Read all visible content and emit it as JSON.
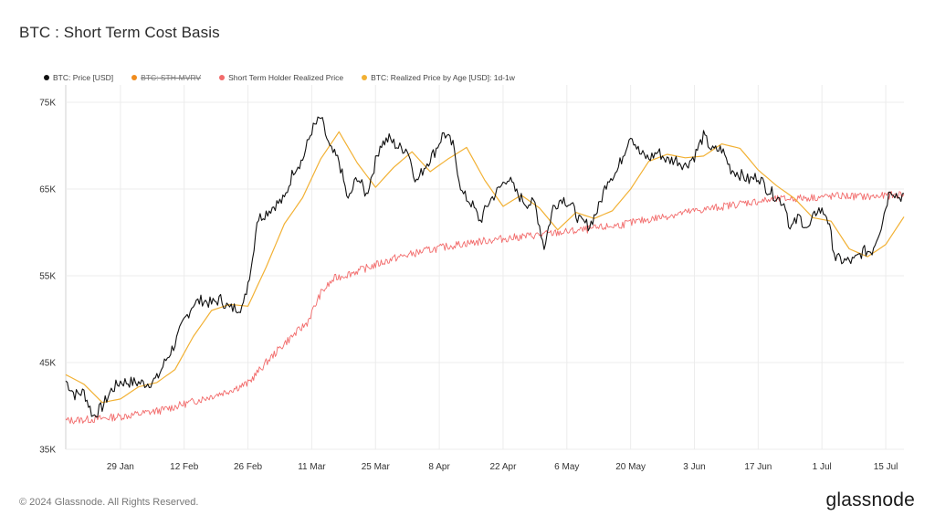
{
  "header": {
    "title": "BTC : Short Term Cost Basis"
  },
  "footer": {
    "copyright": "© 2024 Glassnode. All Rights Reserved.",
    "brand": "glassnode"
  },
  "legend": [
    {
      "label": "BTC: Price [USD]",
      "color": "#111111",
      "enabled": true
    },
    {
      "label": "BTC: STH-MVRV",
      "color": "#f08c1e",
      "enabled": false
    },
    {
      "label": "Short Term Holder Realized Price",
      "color": "#f26b6b",
      "enabled": true
    },
    {
      "label": "BTC: Realized Price by Age [USD]: 1d-1w",
      "color": "#f2b134",
      "enabled": true
    }
  ],
  "chart_data": {
    "type": "line",
    "title": "BTC : Short Term Cost Basis",
    "xlabel": "",
    "ylabel": "",
    "x_range": [
      "2024-01-17",
      "2024-07-19"
    ],
    "ylim": [
      35000,
      77000
    ],
    "y_ticks": [
      {
        "value": 35000,
        "label": "35K"
      },
      {
        "value": 45000,
        "label": "45K"
      },
      {
        "value": 55000,
        "label": "55K"
      },
      {
        "value": 65000,
        "label": "65K"
      },
      {
        "value": 75000,
        "label": "75K"
      }
    ],
    "x_ticks": [
      {
        "date": "2024-01-29",
        "label": "29 Jan"
      },
      {
        "date": "2024-02-12",
        "label": "12 Feb"
      },
      {
        "date": "2024-02-26",
        "label": "26 Feb"
      },
      {
        "date": "2024-03-11",
        "label": "11 Mar"
      },
      {
        "date": "2024-03-25",
        "label": "25 Mar"
      },
      {
        "date": "2024-04-08",
        "label": "8 Apr"
      },
      {
        "date": "2024-04-22",
        "label": "22 Apr"
      },
      {
        "date": "2024-05-06",
        "label": "6 May"
      },
      {
        "date": "2024-05-20",
        "label": "20 May"
      },
      {
        "date": "2024-06-03",
        "label": "3 Jun"
      },
      {
        "date": "2024-06-17",
        "label": "17 Jun"
      },
      {
        "date": "2024-07-01",
        "label": "1 Jul"
      },
      {
        "date": "2024-07-15",
        "label": "15 Jul"
      }
    ],
    "grid": true,
    "legend_position": "top-left",
    "series": [
      {
        "name": "BTC: Price [USD]",
        "color": "#111111",
        "points": [
          [
            "2024-01-17",
            42900
          ],
          [
            "2024-01-19",
            41300
          ],
          [
            "2024-01-21",
            41600
          ],
          [
            "2024-01-23",
            38800
          ],
          [
            "2024-01-25",
            39900
          ],
          [
            "2024-01-27",
            41800
          ],
          [
            "2024-01-29",
            42800
          ],
          [
            "2024-02-01",
            42700
          ],
          [
            "2024-02-04",
            42600
          ],
          [
            "2024-02-06",
            43100
          ],
          [
            "2024-02-08",
            45300
          ],
          [
            "2024-02-10",
            47200
          ],
          [
            "2024-02-12",
            49800
          ],
          [
            "2024-02-14",
            51800
          ],
          [
            "2024-02-16",
            52200
          ],
          [
            "2024-02-18",
            51800
          ],
          [
            "2024-02-20",
            52300
          ],
          [
            "2024-02-22",
            51200
          ],
          [
            "2024-02-25",
            51500
          ],
          [
            "2024-02-27",
            57000
          ],
          [
            "2024-02-28",
            61500
          ],
          [
            "2024-03-01",
            62300
          ],
          [
            "2024-03-03",
            63200
          ],
          [
            "2024-03-05",
            63800
          ],
          [
            "2024-03-07",
            67200
          ],
          [
            "2024-03-09",
            68400
          ],
          [
            "2024-03-11",
            71800
          ],
          [
            "2024-03-13",
            73200
          ],
          [
            "2024-03-15",
            69600
          ],
          [
            "2024-03-17",
            68200
          ],
          [
            "2024-03-19",
            63600
          ],
          [
            "2024-03-21",
            66500
          ],
          [
            "2024-03-23",
            64300
          ],
          [
            "2024-03-26",
            70100
          ],
          [
            "2024-03-28",
            70800
          ],
          [
            "2024-03-30",
            69800
          ],
          [
            "2024-04-01",
            69600
          ],
          [
            "2024-04-03",
            65800
          ],
          [
            "2024-04-05",
            67800
          ],
          [
            "2024-04-07",
            69300
          ],
          [
            "2024-04-09",
            71500
          ],
          [
            "2024-04-11",
            70000
          ],
          [
            "2024-04-13",
            64500
          ],
          [
            "2024-04-15",
            63400
          ],
          [
            "2024-04-17",
            61300
          ],
          [
            "2024-04-19",
            63600
          ],
          [
            "2024-04-21",
            64900
          ],
          [
            "2024-04-23",
            66400
          ],
          [
            "2024-04-25",
            64500
          ],
          [
            "2024-04-27",
            63400
          ],
          [
            "2024-04-29",
            63300
          ],
          [
            "2024-05-01",
            58300
          ],
          [
            "2024-05-03",
            62900
          ],
          [
            "2024-05-05",
            64000
          ],
          [
            "2024-05-07",
            63100
          ],
          [
            "2024-05-09",
            61200
          ],
          [
            "2024-05-11",
            60800
          ],
          [
            "2024-05-13",
            62900
          ],
          [
            "2024-05-15",
            66200
          ],
          [
            "2024-05-17",
            67000
          ],
          [
            "2024-05-20",
            71400
          ],
          [
            "2024-05-22",
            69100
          ],
          [
            "2024-05-24",
            68500
          ],
          [
            "2024-05-26",
            69300
          ],
          [
            "2024-05-28",
            68300
          ],
          [
            "2024-05-30",
            68400
          ],
          [
            "2024-06-01",
            67700
          ],
          [
            "2024-06-03",
            68800
          ],
          [
            "2024-06-05",
            71100
          ],
          [
            "2024-06-07",
            69400
          ],
          [
            "2024-06-09",
            69600
          ],
          [
            "2024-06-11",
            67300
          ],
          [
            "2024-06-13",
            66700
          ],
          [
            "2024-06-15",
            66000
          ],
          [
            "2024-06-17",
            66500
          ],
          [
            "2024-06-19",
            65000
          ],
          [
            "2024-06-21",
            64100
          ],
          [
            "2024-06-23",
            63200
          ],
          [
            "2024-06-24",
            60300
          ],
          [
            "2024-06-26",
            61800
          ],
          [
            "2024-06-28",
            60300
          ],
          [
            "2024-06-30",
            62700
          ],
          [
            "2024-07-02",
            62100
          ],
          [
            "2024-07-04",
            57000
          ],
          [
            "2024-07-06",
            56700
          ],
          [
            "2024-07-08",
            56700
          ],
          [
            "2024-07-10",
            57800
          ],
          [
            "2024-07-12",
            57900
          ],
          [
            "2024-07-14",
            60800
          ],
          [
            "2024-07-16",
            65100
          ],
          [
            "2024-07-18",
            64000
          ],
          [
            "2024-07-19",
            64500
          ]
        ]
      },
      {
        "name": "Short Term Holder Realized Price",
        "color": "#f26b6b",
        "points": [
          [
            "2024-01-17",
            38300
          ],
          [
            "2024-01-24",
            38500
          ],
          [
            "2024-01-31",
            38900
          ],
          [
            "2024-02-07",
            39500
          ],
          [
            "2024-02-14",
            40500
          ],
          [
            "2024-02-21",
            41600
          ],
          [
            "2024-02-26",
            42600
          ],
          [
            "2024-03-01",
            45000
          ],
          [
            "2024-03-05",
            47200
          ],
          [
            "2024-03-10",
            49600
          ],
          [
            "2024-03-13",
            53000
          ],
          [
            "2024-03-16",
            54700
          ],
          [
            "2024-03-22",
            55700
          ],
          [
            "2024-03-29",
            57000
          ],
          [
            "2024-04-05",
            57900
          ],
          [
            "2024-04-12",
            58600
          ],
          [
            "2024-04-19",
            59100
          ],
          [
            "2024-04-26",
            59500
          ],
          [
            "2024-05-03",
            59900
          ],
          [
            "2024-05-10",
            60300
          ],
          [
            "2024-05-17",
            60800
          ],
          [
            "2024-05-24",
            61500
          ],
          [
            "2024-05-31",
            62200
          ],
          [
            "2024-06-07",
            62800
          ],
          [
            "2024-06-14",
            63400
          ],
          [
            "2024-06-21",
            63800
          ],
          [
            "2024-06-28",
            64000
          ],
          [
            "2024-07-05",
            64200
          ],
          [
            "2024-07-12",
            64100
          ],
          [
            "2024-07-19",
            64400
          ]
        ]
      },
      {
        "name": "BTC: Realized Price by Age [USD]: 1d-1w",
        "color": "#f2b134",
        "points": [
          [
            "2024-01-17",
            43600
          ],
          [
            "2024-01-21",
            42500
          ],
          [
            "2024-01-25",
            40400
          ],
          [
            "2024-01-29",
            40800
          ],
          [
            "2024-02-02",
            42200
          ],
          [
            "2024-02-06",
            42700
          ],
          [
            "2024-02-10",
            44200
          ],
          [
            "2024-02-14",
            48000
          ],
          [
            "2024-02-18",
            51000
          ],
          [
            "2024-02-22",
            51700
          ],
          [
            "2024-02-26",
            51500
          ],
          [
            "2024-03-01",
            56000
          ],
          [
            "2024-03-05",
            61000
          ],
          [
            "2024-03-09",
            64000
          ],
          [
            "2024-03-13",
            68500
          ],
          [
            "2024-03-17",
            71600
          ],
          [
            "2024-03-21",
            68000
          ],
          [
            "2024-03-25",
            65200
          ],
          [
            "2024-03-29",
            67500
          ],
          [
            "2024-04-02",
            69300
          ],
          [
            "2024-04-06",
            67000
          ],
          [
            "2024-04-10",
            68500
          ],
          [
            "2024-04-14",
            69800
          ],
          [
            "2024-04-18",
            66000
          ],
          [
            "2024-04-22",
            63000
          ],
          [
            "2024-04-26",
            64300
          ],
          [
            "2024-04-30",
            62800
          ],
          [
            "2024-05-04",
            60300
          ],
          [
            "2024-05-08",
            62300
          ],
          [
            "2024-05-12",
            61600
          ],
          [
            "2024-05-16",
            62500
          ],
          [
            "2024-05-20",
            65000
          ],
          [
            "2024-05-24",
            68200
          ],
          [
            "2024-05-28",
            69000
          ],
          [
            "2024-06-01",
            68600
          ],
          [
            "2024-06-05",
            68800
          ],
          [
            "2024-06-09",
            70200
          ],
          [
            "2024-06-13",
            69700
          ],
          [
            "2024-06-17",
            67200
          ],
          [
            "2024-06-21",
            65400
          ],
          [
            "2024-06-25",
            63900
          ],
          [
            "2024-06-29",
            61700
          ],
          [
            "2024-07-03",
            61300
          ],
          [
            "2024-07-07",
            58100
          ],
          [
            "2024-07-11",
            57200
          ],
          [
            "2024-07-15",
            58600
          ],
          [
            "2024-07-19",
            61800
          ]
        ]
      }
    ]
  }
}
